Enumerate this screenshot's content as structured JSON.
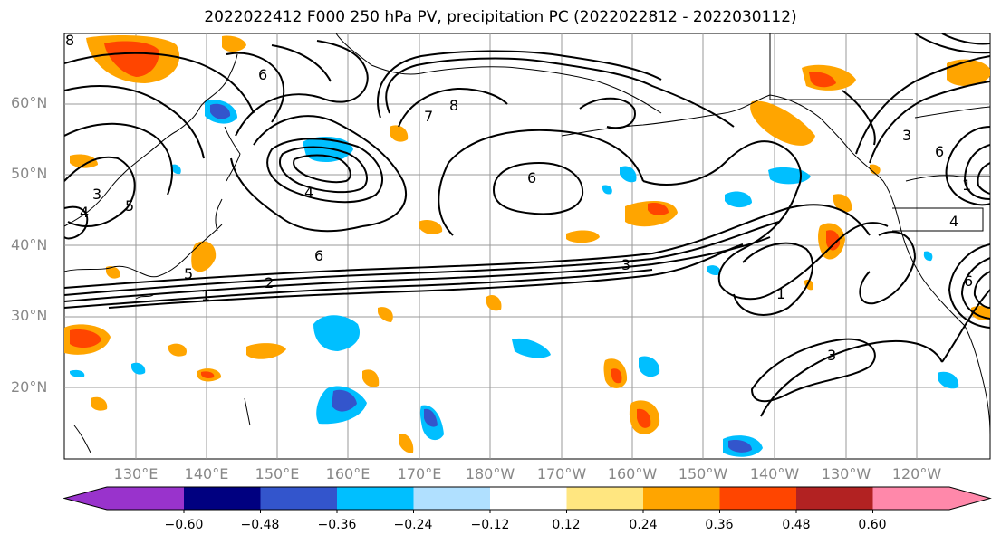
{
  "title": "2022022412 F000 250 hPa PV, precipitation PC (2022022812 - 2022030112)",
  "lat_labels": [
    "60°N",
    "50°N",
    "40°N",
    "30°N",
    "20°N"
  ],
  "lon_labels": [
    "130°E",
    "140°E",
    "150°E",
    "160°E",
    "170°E",
    "180°W",
    "170°W",
    "160°W",
    "150°W",
    "140°W",
    "130°W",
    "120°W"
  ],
  "colorbar": {
    "colors": [
      "#9933cc",
      "#000080",
      "#3355cc",
      "#00bfff",
      "#b0e0ff",
      "#ffffff",
      "#ffe680",
      "#ffa500",
      "#ff4500",
      "#b22222",
      "#ff88aa"
    ],
    "ticks": [
      "−0.60",
      "−0.48",
      "−0.36",
      "−0.24",
      "−0.12",
      "0.12",
      "0.24",
      "0.36",
      "0.48",
      "0.60"
    ]
  },
  "contour_labels": [
    "6",
    "6",
    "6",
    "6",
    "5",
    "5",
    "4",
    "4",
    "3",
    "3",
    "3",
    "3",
    "2",
    "1",
    "1",
    "1",
    "7",
    "8",
    "8",
    "4",
    "6"
  ]
}
